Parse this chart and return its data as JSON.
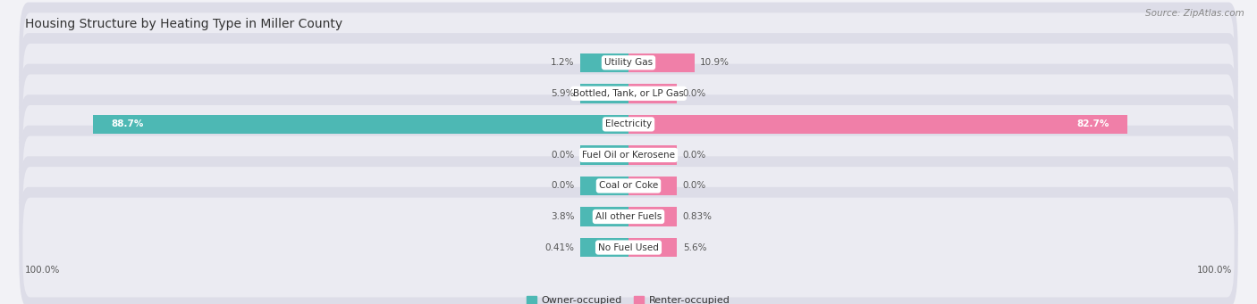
{
  "title": "Housing Structure by Heating Type in Miller County",
  "source": "Source: ZipAtlas.com",
  "categories": [
    "Utility Gas",
    "Bottled, Tank, or LP Gas",
    "Electricity",
    "Fuel Oil or Kerosene",
    "Coal or Coke",
    "All other Fuels",
    "No Fuel Used"
  ],
  "owner_values": [
    1.2,
    5.9,
    88.7,
    0.0,
    0.0,
    3.8,
    0.41
  ],
  "renter_values": [
    10.9,
    0.0,
    82.7,
    0.0,
    0.0,
    0.83,
    5.6
  ],
  "owner_color": "#4db8b4",
  "renter_color": "#f07fa8",
  "owner_label": "Owner-occupied",
  "renter_label": "Renter-occupied",
  "max_value": 100.0,
  "bg_color": "#f2f2f6",
  "row_bg_color": "#e4e4ec",
  "row_bg_color_alt": "#eaeaf0",
  "label_bg_color": "#ffffff",
  "title_fontsize": 10,
  "source_fontsize": 7.5,
  "axis_label_fontsize": 7.5,
  "legend_fontsize": 8,
  "category_fontsize": 7.5,
  "value_fontsize": 7.5,
  "min_bar_width": 8.0,
  "owner_large_threshold": 15.0,
  "renter_large_threshold": 15.0
}
